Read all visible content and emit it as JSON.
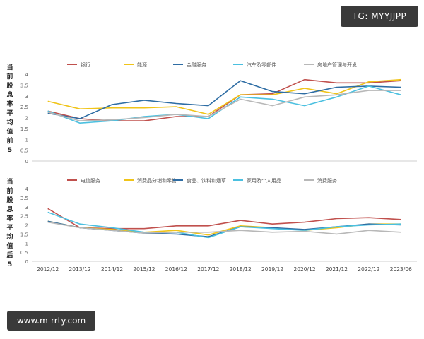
{
  "watermarks": {
    "top_right": "TG: MYYJJPP",
    "bottom_left": "www.m-rrty.com"
  },
  "chart_data": [
    {
      "type": "line",
      "ylabel": "当前股息率平均值前5",
      "ylim": [
        0,
        4
      ],
      "yticks": [
        "0",
        "0.5",
        "1",
        "1.5",
        "2",
        "2.5",
        "3",
        "3.5",
        "4"
      ],
      "x": [
        "2012/12",
        "2013/12",
        "2014/12",
        "2015/12",
        "2016/12",
        "2017/12",
        "2018/12",
        "2019/12",
        "2020/12",
        "2021/12",
        "2022/12",
        "2023/06"
      ],
      "series": [
        {
          "name": "银行",
          "color": "#c0504d",
          "values": [
            2.3,
            1.95,
            1.85,
            1.85,
            2.05,
            2.05,
            3.05,
            3.1,
            3.75,
            3.6,
            3.6,
            3.7
          ]
        },
        {
          "name": "能源",
          "color": "#f0c419",
          "values": [
            2.75,
            2.4,
            2.45,
            2.45,
            2.5,
            2.15,
            3.05,
            3.05,
            3.35,
            3.1,
            3.65,
            3.75
          ]
        },
        {
          "name": "金融服务",
          "color": "#2e6da4",
          "values": [
            2.2,
            1.95,
            2.6,
            2.8,
            2.65,
            2.55,
            3.7,
            3.2,
            3.1,
            3.4,
            3.45,
            3.4
          ]
        },
        {
          "name": "汽车及零部件",
          "color": "#4bc0e0",
          "values": [
            2.3,
            1.75,
            1.85,
            2.05,
            2.15,
            1.95,
            2.95,
            2.85,
            2.55,
            2.95,
            3.45,
            3.05
          ]
        },
        {
          "name": "房地产管理与开发",
          "color": "#b8b8b8",
          "values": [
            2.25,
            1.85,
            1.9,
            2.0,
            2.15,
            2.05,
            2.85,
            2.55,
            2.95,
            3.05,
            3.25,
            3.25
          ]
        }
      ]
    },
    {
      "type": "line",
      "ylabel": "当前股息率平均值后5",
      "ylim": [
        0,
        4
      ],
      "yticks": [
        "0",
        "0.5",
        "1",
        "1.5",
        "2",
        "2.5",
        "3",
        "3.5",
        "4"
      ],
      "x": [
        "2012/12",
        "2013/12",
        "2014/12",
        "2015/12",
        "2016/12",
        "2017/12",
        "2018/12",
        "2019/12",
        "2020/12",
        "2021/12",
        "2022/12",
        "2023/06"
      ],
      "series": [
        {
          "name": "电信服务",
          "color": "#c0504d",
          "values": [
            2.9,
            1.85,
            1.8,
            1.8,
            1.95,
            1.95,
            2.25,
            2.05,
            2.15,
            2.35,
            2.4,
            2.3
          ]
        },
        {
          "name": "消费品分销和零售",
          "color": "#f0c419",
          "values": [
            2.2,
            1.85,
            1.75,
            1.6,
            1.7,
            1.45,
            1.95,
            1.85,
            1.7,
            1.85,
            2.05,
            2.05
          ]
        },
        {
          "name": "食品、饮料和烟草",
          "color": "#2e6da4",
          "values": [
            2.2,
            1.85,
            1.7,
            1.55,
            1.5,
            1.35,
            1.9,
            1.85,
            1.75,
            1.9,
            2.05,
            2.0
          ]
        },
        {
          "name": "家用及个人用品",
          "color": "#4bc0e0",
          "values": [
            2.7,
            2.05,
            1.85,
            1.6,
            1.6,
            1.3,
            1.9,
            1.8,
            1.7,
            1.9,
            2.0,
            2.05
          ]
        },
        {
          "name": "消费服务",
          "color": "#b8b8b8",
          "values": [
            2.15,
            1.85,
            1.7,
            1.55,
            1.6,
            1.6,
            1.7,
            1.6,
            1.65,
            1.5,
            1.7,
            1.6
          ]
        }
      ]
    }
  ]
}
